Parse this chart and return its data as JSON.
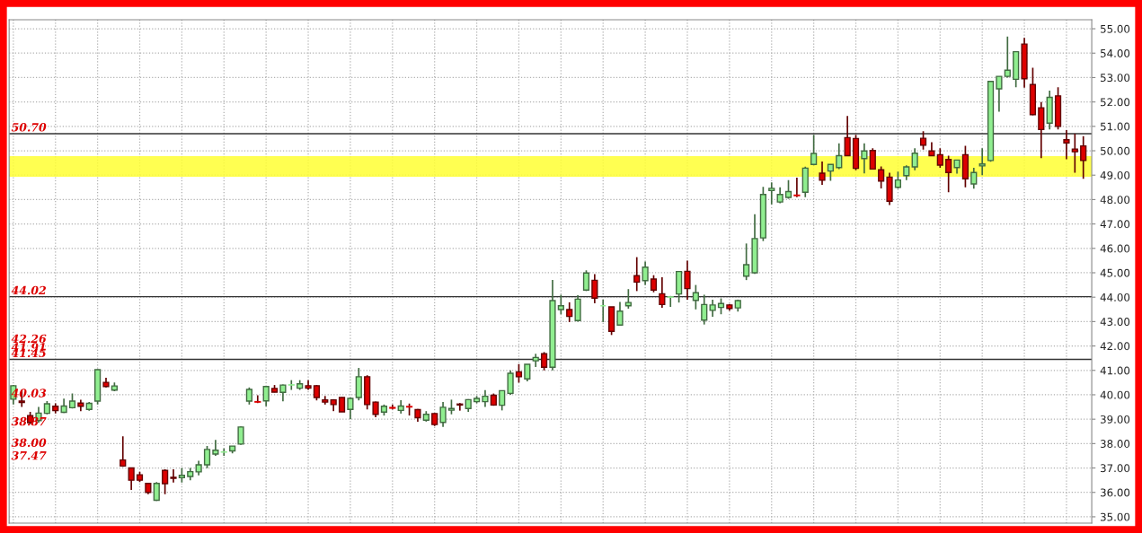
{
  "chart_data": {
    "type": "candlestick",
    "categories": [
      null,
      null,
      null,
      null,
      null,
      null,
      null,
      null,
      null,
      null,
      null,
      null,
      null,
      null,
      null,
      null,
      null,
      null,
      null,
      null,
      null,
      null,
      null,
      null,
      null,
      null,
      null,
      null,
      null,
      null,
      null,
      null,
      null,
      null,
      null,
      null,
      null,
      null,
      null,
      null,
      null,
      null,
      null,
      null,
      null,
      null,
      null,
      null,
      null,
      null,
      null,
      null,
      null,
      null,
      null,
      null,
      null,
      null,
      null,
      null,
      null,
      null,
      null,
      null,
      null,
      null,
      null,
      null,
      null,
      null,
      null,
      null,
      null,
      null,
      null,
      null,
      null,
      null,
      null,
      null,
      null,
      null,
      null,
      null,
      null,
      null,
      null,
      null,
      null,
      null,
      null,
      null,
      null,
      null,
      null,
      null,
      null,
      null,
      null,
      null,
      null,
      null,
      null,
      null,
      null,
      null,
      null,
      null,
      null,
      null,
      null,
      null,
      null,
      null,
      null,
      null,
      null,
      null,
      null,
      null,
      null,
      null,
      null,
      null,
      null,
      null,
      null,
      null
    ],
    "ohlc": [
      [
        39.82,
        40.4,
        39.6,
        40.37
      ],
      [
        39.74,
        40.2,
        39.5,
        39.68
      ],
      [
        39.15,
        39.3,
        38.8,
        38.86
      ],
      [
        38.94,
        39.5,
        38.85,
        39.25
      ],
      [
        39.24,
        39.74,
        39.2,
        39.63
      ],
      [
        39.53,
        39.65,
        39.24,
        39.35
      ],
      [
        39.28,
        39.84,
        39.25,
        39.54
      ],
      [
        39.47,
        40.05,
        39.44,
        39.74
      ],
      [
        39.66,
        39.8,
        39.33,
        39.53
      ],
      [
        39.4,
        39.7,
        39.35,
        39.65
      ],
      [
        39.74,
        41.05,
        39.6,
        41.03
      ],
      [
        40.51,
        40.7,
        40.3,
        40.34
      ],
      [
        40.19,
        40.5,
        40.15,
        40.36
      ],
      [
        37.33,
        38.3,
        37.05,
        37.08
      ],
      [
        37.0,
        37.0,
        36.1,
        36.5
      ],
      [
        36.72,
        36.85,
        36.42,
        36.5
      ],
      [
        36.37,
        36.37,
        35.93,
        36.0
      ],
      [
        35.68,
        36.42,
        35.65,
        36.37
      ],
      [
        36.9,
        36.95,
        35.93,
        36.36
      ],
      [
        36.62,
        36.95,
        36.4,
        36.58
      ],
      [
        36.6,
        37.0,
        36.4,
        36.7
      ],
      [
        36.65,
        37.0,
        36.5,
        36.85
      ],
      [
        36.84,
        37.3,
        36.7,
        37.13
      ],
      [
        37.13,
        37.9,
        36.99,
        37.76
      ],
      [
        37.57,
        38.15,
        37.5,
        37.73
      ],
      [
        37.65,
        37.8,
        37.5,
        37.66
      ],
      [
        37.7,
        37.9,
        37.6,
        37.9
      ],
      [
        37.98,
        38.7,
        37.95,
        38.68
      ],
      [
        39.74,
        40.3,
        39.6,
        40.22
      ],
      [
        39.72,
        39.98,
        39.66,
        39.7
      ],
      [
        39.75,
        40.34,
        39.53,
        40.34
      ],
      [
        40.26,
        40.4,
        40.1,
        40.11
      ],
      [
        40.1,
        40.42,
        39.73,
        40.4
      ],
      [
        40.4,
        40.6,
        40.2,
        40.41
      ],
      [
        40.27,
        40.6,
        40.2,
        40.45
      ],
      [
        40.37,
        40.6,
        40.2,
        40.27
      ],
      [
        40.37,
        40.4,
        39.77,
        39.89
      ],
      [
        39.79,
        39.95,
        39.6,
        39.7
      ],
      [
        39.79,
        39.82,
        39.33,
        39.6
      ],
      [
        39.89,
        39.9,
        39.3,
        39.3
      ],
      [
        39.4,
        39.9,
        39.0,
        39.85
      ],
      [
        39.89,
        41.1,
        39.77,
        40.74
      ],
      [
        40.74,
        40.8,
        39.4,
        39.6
      ],
      [
        39.7,
        39.72,
        39.08,
        39.2
      ],
      [
        39.29,
        39.6,
        39.15,
        39.53
      ],
      [
        39.48,
        39.6,
        39.4,
        39.45
      ],
      [
        39.36,
        39.78,
        39.23,
        39.54
      ],
      [
        39.52,
        39.64,
        39.15,
        39.5
      ],
      [
        39.39,
        39.42,
        38.9,
        39.06
      ],
      [
        38.96,
        39.33,
        38.9,
        39.2
      ],
      [
        39.23,
        39.25,
        38.72,
        38.78
      ],
      [
        38.87,
        39.7,
        38.68,
        39.49
      ],
      [
        39.37,
        39.8,
        39.2,
        39.44
      ],
      [
        39.62,
        39.66,
        39.35,
        39.58
      ],
      [
        39.44,
        39.82,
        39.3,
        39.8
      ],
      [
        39.72,
        39.95,
        39.65,
        39.85
      ],
      [
        39.72,
        40.19,
        39.5,
        39.94
      ],
      [
        39.98,
        40.05,
        39.55,
        39.58
      ],
      [
        39.57,
        40.17,
        39.36,
        40.17
      ],
      [
        40.06,
        41.0,
        40.0,
        40.88
      ],
      [
        40.94,
        41.26,
        40.5,
        40.74
      ],
      [
        40.65,
        41.25,
        40.55,
        41.25
      ],
      [
        41.39,
        41.68,
        41.14,
        41.53
      ],
      [
        41.68,
        41.75,
        41.0,
        41.13
      ],
      [
        41.13,
        44.71,
        41.0,
        43.86
      ],
      [
        43.49,
        44.1,
        43.3,
        43.65
      ],
      [
        43.49,
        43.79,
        42.98,
        43.21
      ],
      [
        43.04,
        44.08,
        43.0,
        43.92
      ],
      [
        44.29,
        45.1,
        44.25,
        44.99
      ],
      [
        44.69,
        44.94,
        43.75,
        43.96
      ],
      [
        43.65,
        43.9,
        42.98,
        43.65
      ],
      [
        43.6,
        43.6,
        42.45,
        42.6
      ],
      [
        42.86,
        43.8,
        42.86,
        43.43
      ],
      [
        43.65,
        44.33,
        43.53,
        43.78
      ],
      [
        44.88,
        45.64,
        44.25,
        44.62
      ],
      [
        44.68,
        45.46,
        44.5,
        45.23
      ],
      [
        44.74,
        44.9,
        44.2,
        44.29
      ],
      [
        44.14,
        44.82,
        43.57,
        43.7
      ],
      [
        44.0,
        44.05,
        43.6,
        44.01
      ],
      [
        44.13,
        45.05,
        43.78,
        45.05
      ],
      [
        45.06,
        45.5,
        43.9,
        44.35
      ],
      [
        43.87,
        44.5,
        43.5,
        44.18
      ],
      [
        43.06,
        44.1,
        42.88,
        43.7
      ],
      [
        43.46,
        43.9,
        43.2,
        43.68
      ],
      [
        43.58,
        43.95,
        43.3,
        43.74
      ],
      [
        43.68,
        43.72,
        43.45,
        43.54
      ],
      [
        43.56,
        43.9,
        43.41,
        43.86
      ],
      [
        44.86,
        46.2,
        44.7,
        45.33
      ],
      [
        45.0,
        47.4,
        44.95,
        46.4
      ],
      [
        46.43,
        48.52,
        46.3,
        48.21
      ],
      [
        48.37,
        48.7,
        47.8,
        48.46
      ],
      [
        47.9,
        48.5,
        47.85,
        48.21
      ],
      [
        48.09,
        48.8,
        48.03,
        48.33
      ],
      [
        48.18,
        48.9,
        48.1,
        48.16
      ],
      [
        48.3,
        49.35,
        48.1,
        49.29
      ],
      [
        49.44,
        50.65,
        49.4,
        49.89
      ],
      [
        49.08,
        49.56,
        48.6,
        48.79
      ],
      [
        49.17,
        49.44,
        48.77,
        49.44
      ],
      [
        49.31,
        50.3,
        49.25,
        49.8
      ],
      [
        50.54,
        51.43,
        49.8,
        49.8
      ],
      [
        50.5,
        50.65,
        49.2,
        49.28
      ],
      [
        49.68,
        50.3,
        49.07,
        49.99
      ],
      [
        50.01,
        50.1,
        49.25,
        49.25
      ],
      [
        49.22,
        49.36,
        48.46,
        48.76
      ],
      [
        48.92,
        49.1,
        47.78,
        47.93
      ],
      [
        48.5,
        49.15,
        48.45,
        48.8
      ],
      [
        48.98,
        49.4,
        48.8,
        49.34
      ],
      [
        49.34,
        50.1,
        49.2,
        49.9
      ],
      [
        50.51,
        50.8,
        50.05,
        50.23
      ],
      [
        49.99,
        50.35,
        49.8,
        49.8
      ],
      [
        49.84,
        50.1,
        49.3,
        49.41
      ],
      [
        49.64,
        49.8,
        48.3,
        49.11
      ],
      [
        49.31,
        49.62,
        49.06,
        49.62
      ],
      [
        49.84,
        50.2,
        48.5,
        48.85
      ],
      [
        48.64,
        49.3,
        48.45,
        49.11
      ],
      [
        49.38,
        50.1,
        49.0,
        49.46
      ],
      [
        49.6,
        52.84,
        49.55,
        52.84
      ],
      [
        52.54,
        53.05,
        51.6,
        53.05
      ],
      [
        53.05,
        54.68,
        53.0,
        53.3
      ],
      [
        52.93,
        54.06,
        52.6,
        54.06
      ],
      [
        54.37,
        54.62,
        52.58,
        52.95
      ],
      [
        52.71,
        53.4,
        51.45,
        51.48
      ],
      [
        51.76,
        52.0,
        49.7,
        50.87
      ],
      [
        51.13,
        52.46,
        50.87,
        52.19
      ],
      [
        52.25,
        52.6,
        50.87,
        51.0
      ],
      [
        50.45,
        50.85,
        49.65,
        50.32
      ],
      [
        50.07,
        50.7,
        49.1,
        49.96
      ],
      [
        50.2,
        50.6,
        48.85,
        49.6
      ]
    ],
    "colors": [
      "#90ee90",
      "#dd0000",
      "#dd0000",
      "#90ee90",
      "#90ee90",
      "#dd0000",
      "#90ee90",
      "#90ee90",
      "#dd0000",
      "#90ee90",
      "#90ee90",
      "#dd0000",
      "#90ee90",
      "#dd0000",
      "#dd0000",
      "#dd0000",
      "#dd0000",
      "#90ee90",
      "#dd0000",
      "#dd0000",
      "#90ee90",
      "#90ee90",
      "#90ee90",
      "#90ee90",
      "#90ee90",
      "#90ee90",
      "#90ee90",
      "#90ee90",
      "#90ee90",
      "#dd0000",
      "#90ee90",
      "#dd0000",
      "#90ee90",
      "#90ee90",
      "#90ee90",
      "#dd0000",
      "#dd0000",
      "#dd0000",
      "#dd0000",
      "#dd0000",
      "#90ee90",
      "#90ee90",
      "#dd0000",
      "#dd0000",
      "#90ee90",
      "#dd0000",
      "#90ee90",
      "#dd0000",
      "#dd0000",
      "#90ee90",
      "#dd0000",
      "#90ee90",
      "#90ee90",
      "#dd0000",
      "#90ee90",
      "#90ee90",
      "#90ee90",
      "#dd0000",
      "#90ee90",
      "#90ee90",
      "#dd0000",
      "#90ee90",
      "#90ee90",
      "#dd0000",
      "#90ee90",
      "#90ee90",
      "#dd0000",
      "#90ee90",
      "#90ee90",
      "#dd0000",
      "#90ee90",
      "#dd0000",
      "#90ee90",
      "#90ee90",
      "#dd0000",
      "#90ee90",
      "#dd0000",
      "#dd0000",
      "#90ee90",
      "#90ee90",
      "#dd0000",
      "#90ee90",
      "#90ee90",
      "#90ee90",
      "#90ee90",
      "#dd0000",
      "#90ee90",
      "#90ee90",
      "#90ee90",
      "#90ee90",
      "#90ee90",
      "#90ee90",
      "#90ee90",
      "#dd0000",
      "#90ee90",
      "#90ee90",
      "#dd0000",
      "#90ee90",
      "#90ee90",
      "#dd0000",
      "#dd0000",
      "#90ee90",
      "#dd0000",
      "#dd0000",
      "#dd0000",
      "#90ee90",
      "#90ee90",
      "#90ee90",
      "#dd0000",
      "#dd0000",
      "#dd0000",
      "#dd0000",
      "#90ee90",
      "#dd0000",
      "#90ee90",
      "#90ee90",
      "#90ee90",
      "#90ee90",
      "#90ee90",
      "#90ee90",
      "#dd0000",
      "#dd0000",
      "#dd0000",
      "#90ee90",
      "#dd0000",
      "#dd0000",
      "#dd0000",
      "#dd0000"
    ],
    "ylim": [
      34.74,
      55.37
    ],
    "yticks": [
      {
        "value": 35,
        "label": "35.00"
      },
      {
        "value": 36,
        "label": "36.00"
      },
      {
        "value": 37,
        "label": "37.00"
      },
      {
        "value": 38,
        "label": "38.00"
      },
      {
        "value": 39,
        "label": "39.00"
      },
      {
        "value": 40,
        "label": "40.00"
      },
      {
        "value": 41,
        "label": "41.00"
      },
      {
        "value": 42,
        "label": "42.00"
      },
      {
        "value": 43,
        "label": "43.00"
      },
      {
        "value": 44,
        "label": "44.00"
      },
      {
        "value": 45,
        "label": "45.00"
      },
      {
        "value": 46,
        "label": "46.00"
      },
      {
        "value": 47,
        "label": "47.00"
      },
      {
        "value": 48,
        "label": "48.00"
      },
      {
        "value": 49,
        "label": "49.00"
      },
      {
        "value": 50,
        "label": "50.00"
      },
      {
        "value": 51,
        "label": "51.00"
      },
      {
        "value": 52,
        "label": "52.00"
      },
      {
        "value": 53,
        "label": "53.00"
      },
      {
        "value": 54,
        "label": "54.00"
      },
      {
        "value": 55,
        "label": "55.00"
      }
    ],
    "ref_lines": [
      {
        "axis": "y",
        "value": 50.7,
        "label": "50.70",
        "color": "#333333"
      },
      {
        "axis": "y",
        "value": 44.02,
        "label": "44.02",
        "color": "#333333"
      },
      {
        "axis": "y",
        "value": 41.45,
        "label": "41.45",
        "color": "#333333"
      }
    ],
    "bands": [
      {
        "axis": "y",
        "from": 48.93,
        "to": 49.78,
        "color": "#ffff33"
      }
    ],
    "annotations": [
      "42.26",
      "41.91",
      "40.03",
      "38.87",
      "38.00",
      "37.47"
    ],
    "grid": true,
    "tick_labels": "y"
  }
}
